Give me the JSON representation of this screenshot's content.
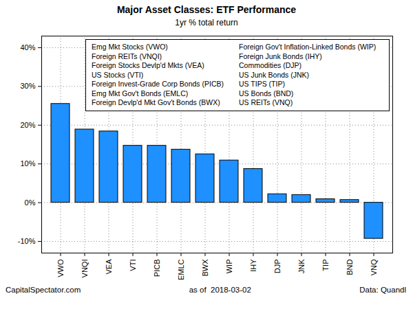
{
  "chart_data": {
    "type": "bar",
    "title": "Major Asset Classes: ETF Performance",
    "subtitle": "1yr % total return",
    "categories": [
      "VWO",
      "VNQI",
      "VEA",
      "VTI",
      "PICB",
      "EMLC",
      "BWX",
      "WIP",
      "IHY",
      "DJP",
      "JNK",
      "TIP",
      "BND",
      "VNQ"
    ],
    "values": [
      25.5,
      18.9,
      18.4,
      14.7,
      14.7,
      13.7,
      12.5,
      10.9,
      8.7,
      2.2,
      2.0,
      0.9,
      0.7,
      -9.3
    ],
    "color": "#1e90ff",
    "ylim": [
      -13,
      43
    ],
    "yticks": [
      {
        "value": -10,
        "label": "-10%"
      },
      {
        "value": 0,
        "label": "0%"
      },
      {
        "value": 10,
        "label": "10%"
      },
      {
        "value": 20,
        "label": "20%"
      },
      {
        "value": 30,
        "label": "30%"
      },
      {
        "value": 40,
        "label": "40%"
      }
    ],
    "grid": true,
    "annotations": [
      "Emg Mkt Stocks (VWO)",
      "Foreign REITs (VNQI)",
      "Foreign Stocks Devlp'd Mkts (VEA)",
      "US Stocks (VTI)",
      "Foreign Invest-Grade Corp Bonds (PICB)",
      "Emg Mkt Gov't Bonds (EMLC)",
      "Foreign Devlp'd Mkt Gov't Bonds (BWX)",
      "Foreign Gov't Inflation-Linked Bonds (WIP)",
      "Foreign Junk Bonds (IHY)",
      "Commodities (DJP)",
      "US Junk Bonds (JNK)",
      "US TIPS (TIP)",
      "US Bonds (BND)",
      "US REITs (VNQ)"
    ],
    "caption": [
      "CapitalSpectator.com",
      "as of  2018-03-02",
      "Data: Quandl"
    ]
  }
}
